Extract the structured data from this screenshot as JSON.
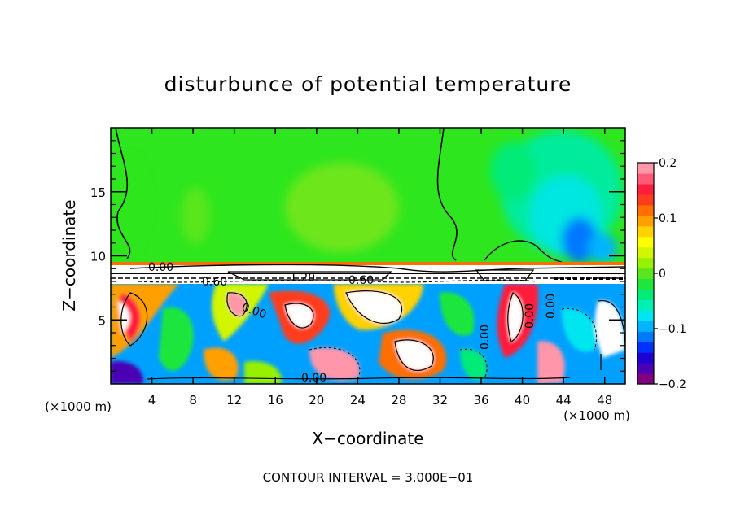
{
  "chart_data": {
    "type": "heatmap",
    "title": "disturbunce of potential temperature",
    "xlabel": "X−coordinate",
    "ylabel": "Z−coordinate",
    "x_unit": "(×1000 m)",
    "x_unit_right": "(×1000 m)",
    "xlim": [
      0,
      50
    ],
    "ylim": [
      0,
      20
    ],
    "x_ticks": [
      4,
      8,
      12,
      16,
      20,
      24,
      28,
      32,
      36,
      40,
      44,
      48
    ],
    "x_tick_labels": [
      "4",
      "8",
      "12",
      "16",
      "20",
      "24",
      "28",
      "32",
      "36",
      "40",
      "44",
      "48"
    ],
    "y_ticks": [
      5,
      10,
      15
    ],
    "y_tick_labels": [
      "5",
      "10",
      "15"
    ],
    "colorbar": {
      "range": [
        -0.2,
        0.2
      ],
      "tick_values": [
        0.2,
        0.1,
        0,
        -0.1,
        -0.2
      ],
      "tick_labels": [
        "0.2",
        "0.1",
        "0",
        "−0.1",
        "−0.2"
      ],
      "colors": [
        "#800080",
        "#4b00b4",
        "#1e00d2",
        "#0032ff",
        "#0078ff",
        "#00b4ff",
        "#00e6f0",
        "#00f0b4",
        "#00eb78",
        "#1ee63c",
        "#5ae61e",
        "#96f000",
        "#d2f500",
        "#ffff00",
        "#ffd200",
        "#ffa000",
        "#ff6e00",
        "#ff3c1e",
        "#ff1e3c",
        "#ff5a78",
        "#ff96aa"
      ]
    },
    "contour_labels": [
      "0.00",
      "0.60",
      "1.20",
      "0.60",
      "0.00",
      "0.00",
      "0.00",
      "0.00",
      "0.00"
    ],
    "annotation": "CONTOUR INTERVAL = 3.000E−01",
    "grid": false
  }
}
